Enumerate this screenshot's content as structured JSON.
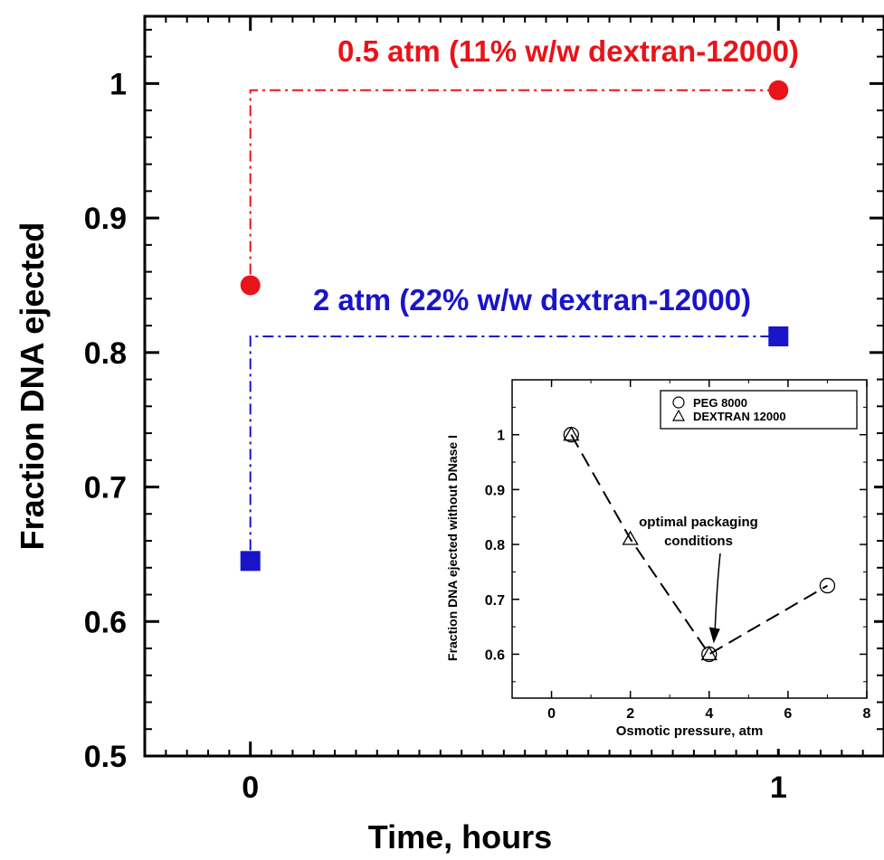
{
  "chart_data": [
    {
      "type": "scatter",
      "title": "",
      "xlabel": "Time, hours",
      "ylabel": "Fraction DNA ejected",
      "xlim": [
        -0.2,
        1.2
      ],
      "ylim": [
        0.5,
        1.05
      ],
      "x_ticks": [
        0,
        1
      ],
      "x_tick_labels": [
        "0",
        "1"
      ],
      "y_ticks": [
        0.5,
        0.6,
        0.7,
        0.8,
        0.9,
        1.0
      ],
      "y_tick_labels": [
        "0.5",
        "0.6",
        "0.7",
        "0.8",
        "0.9",
        "1"
      ],
      "grid": false,
      "series": [
        {
          "name": "0.5 atm (11% w/w dextran-12000)",
          "marker": "circle",
          "color": "#e8141a",
          "x": [
            0,
            1
          ],
          "y": [
            0.85,
            0.995
          ]
        },
        {
          "name": "2 atm (22% w/w dextran-12000)",
          "marker": "square",
          "color": "#1a14c8",
          "x": [
            0,
            1
          ],
          "y": [
            0.645,
            0.812
          ]
        }
      ]
    },
    {
      "type": "line",
      "title": "",
      "xlabel": "Osmotic pressure, atm",
      "ylabel": "Fraction DNA ejected without DNase I",
      "xlim": [
        -1,
        8
      ],
      "ylim": [
        0.52,
        1.1
      ],
      "x_ticks": [
        0,
        2,
        4,
        6,
        8
      ],
      "x_tick_labels": [
        "0",
        "2",
        "4",
        "6",
        "8"
      ],
      "y_ticks": [
        0.6,
        0.7,
        0.8,
        0.9,
        1.0
      ],
      "y_tick_labels": [
        "0.6",
        "0.7",
        "0.8",
        "0.9",
        "1"
      ],
      "legend_position": "top-right",
      "grid": false,
      "series": [
        {
          "name": "PEG 8000",
          "marker": "circle",
          "x": [
            0.5,
            4,
            7
          ],
          "y": [
            1.0,
            0.6,
            0.725
          ]
        },
        {
          "name": "DEXTRAN 12000",
          "marker": "triangle",
          "x": [
            0.5,
            2,
            4
          ],
          "y": [
            1.0,
            0.81,
            0.6
          ]
        }
      ],
      "fit_line": {
        "x": [
          0.5,
          2,
          4,
          7
        ],
        "y": [
          1.0,
          0.81,
          0.6,
          0.725
        ]
      },
      "annotation": {
        "text_lines": [
          "optimal packaging",
          "conditions"
        ],
        "points_to": [
          4,
          0.6
        ]
      }
    }
  ]
}
